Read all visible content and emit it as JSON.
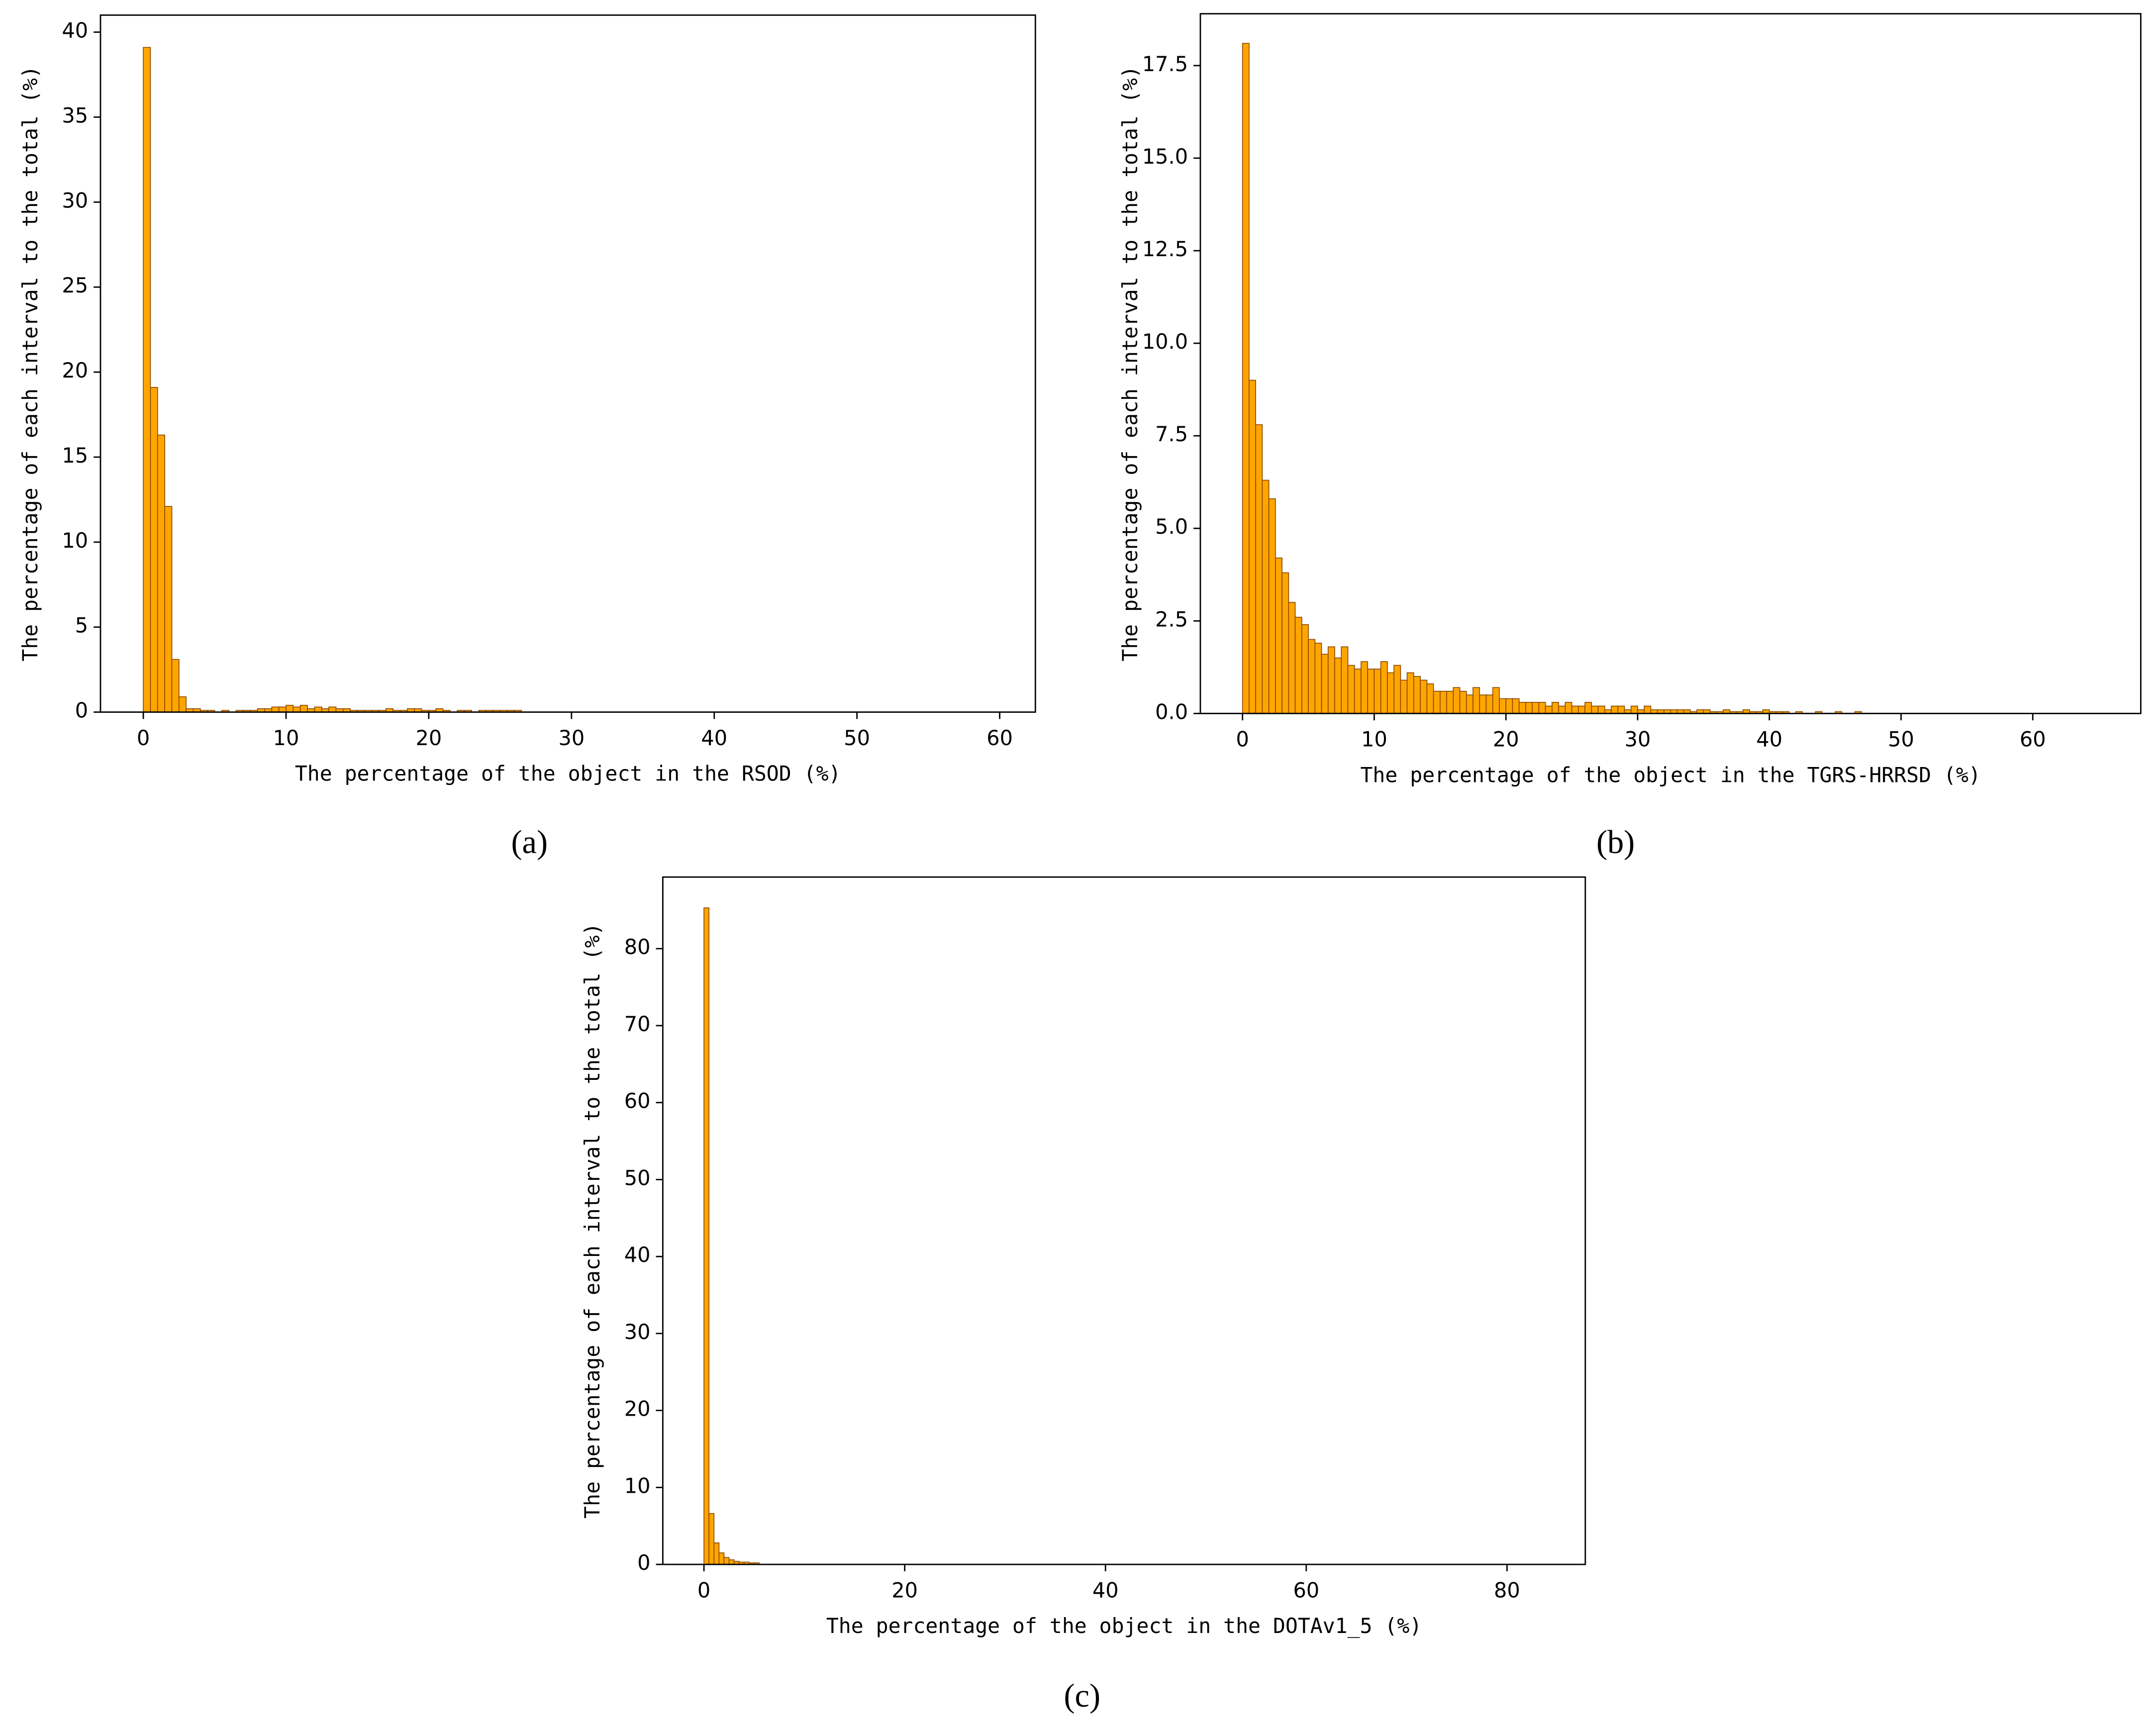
{
  "chart_data": [
    {
      "type": "histogram",
      "caption": "(a)",
      "xlabel": "The percentage of the object in the RSOD (%)",
      "ylabel": "The percentage of each interval to the total (%)",
      "color": "#ffa500",
      "edgecolor": "#8b4a00",
      "bins": [
        0,
        0.5,
        1,
        1.5,
        2,
        2.5,
        3,
        3.5,
        4,
        4.5,
        5,
        5.5,
        6,
        6.5,
        7,
        7.5,
        8,
        8.5,
        9,
        9.5,
        10,
        10.5,
        11,
        11.5,
        12,
        12.5,
        13,
        13.5,
        14,
        14.5,
        15,
        15.5,
        16,
        16.5,
        17,
        17.5,
        18,
        18.5,
        19,
        19.5,
        20,
        20.5,
        21,
        21.5,
        22,
        22.5,
        23,
        23.5,
        24,
        24.5,
        25,
        25.5,
        26,
        26.5,
        27
      ],
      "values": [
        39.1,
        19.1,
        16.3,
        12.1,
        3.1,
        0.9,
        0.2,
        0.2,
        0.1,
        0.1,
        0,
        0.1,
        0,
        0.1,
        0.1,
        0.1,
        0.2,
        0.2,
        0.3,
        0.3,
        0.4,
        0.3,
        0.4,
        0.2,
        0.3,
        0.2,
        0.3,
        0.2,
        0.2,
        0.1,
        0.1,
        0.1,
        0.1,
        0.1,
        0.2,
        0.1,
        0.1,
        0.2,
        0.2,
        0.1,
        0.1,
        0.2,
        0.1,
        0,
        0.1,
        0.1,
        0,
        0.1,
        0.1,
        0.1,
        0.1,
        0.1,
        0.1,
        0
      ],
      "xlim": [
        -3.0,
        62.5
      ],
      "ylim": [
        0,
        41
      ],
      "xticks": [
        0,
        10,
        20,
        30,
        40,
        50,
        60
      ],
      "yticks": [
        0,
        5,
        10,
        15,
        20,
        25,
        30,
        35,
        40
      ]
    },
    {
      "type": "histogram",
      "caption": "(b)",
      "xlabel": "The percentage of the object in the TGRS-HRRSD (%)",
      "ylabel": "The percentage of each interval to the total (%)",
      "color": "#ffa500",
      "edgecolor": "#8b4a00",
      "bins": [
        0,
        0.5,
        1,
        1.5,
        2,
        2.5,
        3,
        3.5,
        4,
        4.5,
        5,
        5.5,
        6,
        6.5,
        7,
        7.5,
        8,
        8.5,
        9,
        9.5,
        10,
        10.5,
        11,
        11.5,
        12,
        12.5,
        13,
        13.5,
        14,
        14.5,
        15,
        15.5,
        16,
        16.5,
        17,
        17.5,
        18,
        18.5,
        19,
        19.5,
        20,
        20.5,
        21,
        21.5,
        22,
        22.5,
        23,
        23.5,
        24,
        24.5,
        25,
        25.5,
        26,
        26.5,
        27,
        27.5,
        28,
        28.5,
        29,
        29.5,
        30,
        30.5,
        31,
        31.5,
        32,
        32.5,
        33,
        33.5,
        34,
        34.5,
        35,
        35.5,
        36,
        36.5,
        37,
        37.5,
        38,
        38.5,
        39,
        39.5,
        40,
        40.5,
        41,
        41.5,
        42,
        42.5,
        43,
        43.5,
        44,
        44.5,
        45,
        45.5,
        46,
        46.5,
        47
      ],
      "values": [
        18.1,
        9.0,
        7.8,
        6.3,
        5.8,
        4.2,
        3.8,
        3.0,
        2.6,
        2.4,
        2.0,
        1.9,
        1.6,
        1.8,
        1.5,
        1.8,
        1.3,
        1.2,
        1.4,
        1.2,
        1.2,
        1.4,
        1.1,
        1.3,
        0.9,
        1.1,
        1.0,
        0.9,
        0.8,
        0.6,
        0.6,
        0.6,
        0.7,
        0.6,
        0.5,
        0.7,
        0.5,
        0.5,
        0.7,
        0.4,
        0.4,
        0.4,
        0.3,
        0.3,
        0.3,
        0.3,
        0.2,
        0.3,
        0.2,
        0.3,
        0.2,
        0.2,
        0.3,
        0.2,
        0.2,
        0.1,
        0.2,
        0.2,
        0.1,
        0.2,
        0.1,
        0.2,
        0.1,
        0.1,
        0.1,
        0.1,
        0.1,
        0.1,
        0.05,
        0.1,
        0.1,
        0.05,
        0.05,
        0.1,
        0.05,
        0.05,
        0.1,
        0.05,
        0.05,
        0.1,
        0.05,
        0.05,
        0.05,
        0,
        0.05,
        0,
        0,
        0.05,
        0,
        0,
        0.05,
        0,
        0,
        0.05
      ],
      "xlim": [
        -3.2,
        68.2
      ],
      "ylim": [
        0,
        18.9
      ],
      "xticks": [
        0,
        10,
        20,
        30,
        40,
        50,
        60
      ],
      "yticks": [
        {
          "value": 0,
          "label": "0.0"
        },
        2.5,
        {
          "value": 5,
          "label": "5.0"
        },
        7.5,
        {
          "value": 10,
          "label": "10.0"
        },
        12.5,
        {
          "value": 15,
          "label": "15.0"
        },
        17.5
      ]
    },
    {
      "type": "histogram",
      "caption": "(c)",
      "xlabel": "The percentage of the object in the DOTAv1_5 (%)",
      "ylabel": "The percentage of each interval to the total (%)",
      "color": "#ffa500",
      "edgecolor": "#8b4a00",
      "bins": [
        0,
        0.5,
        1,
        1.5,
        2,
        2.5,
        3,
        3.5,
        4,
        4.5,
        5,
        5.5
      ],
      "values": [
        85.3,
        6.6,
        2.8,
        1.5,
        0.9,
        0.6,
        0.4,
        0.3,
        0.3,
        0.2,
        0.2
      ],
      "xlim": [
        -4.1,
        87.8
      ],
      "ylim": [
        0,
        89.3
      ],
      "xticks": [
        0,
        20,
        40,
        60,
        80
      ],
      "yticks": [
        0,
        10,
        20,
        30,
        40,
        50,
        60,
        70,
        80
      ]
    }
  ]
}
